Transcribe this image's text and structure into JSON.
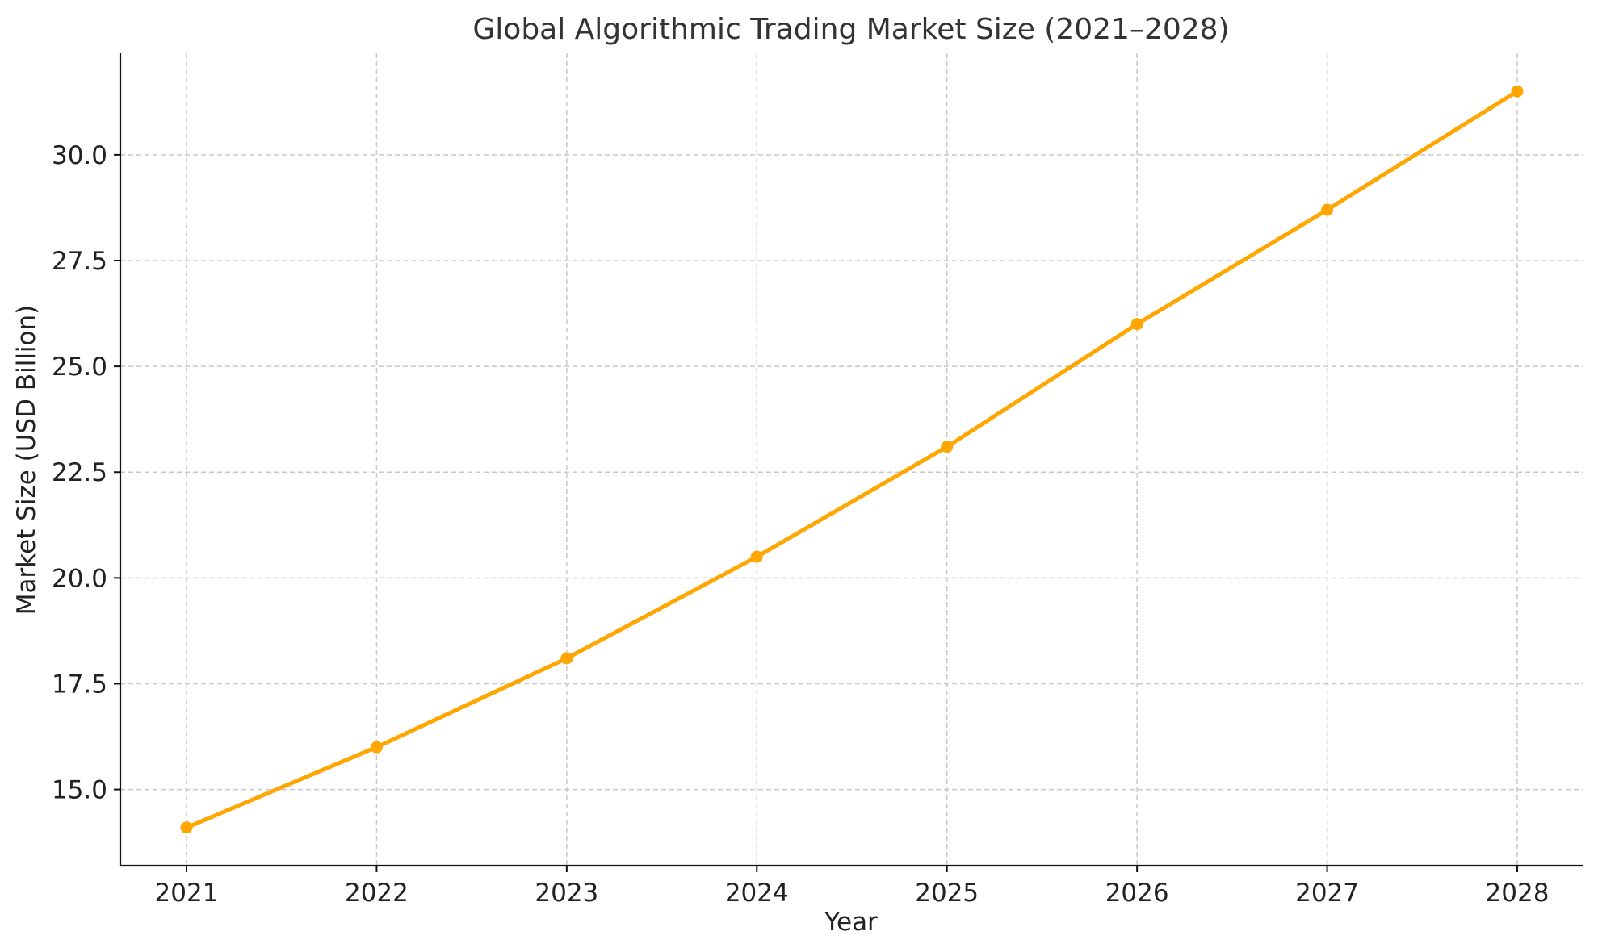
{
  "chart_data": {
    "type": "line",
    "title": "Global Algorithmic Trading Market Size (2021–2028)",
    "xlabel": "Year",
    "ylabel": "Market Size (USD Billion)",
    "x": [
      "2021",
      "2022",
      "2023",
      "2024",
      "2025",
      "2026",
      "2027",
      "2028"
    ],
    "series": [
      {
        "values": [
          14.1,
          16.0,
          18.1,
          20.5,
          23.1,
          26.0,
          28.7,
          31.5
        ],
        "color": "#FFA600",
        "marker": "circle"
      }
    ],
    "y_ticks": [
      15.0,
      17.5,
      20.0,
      22.5,
      25.0,
      27.5,
      30.0
    ],
    "y_tick_labels": [
      "15.0",
      "17.5",
      "20.0",
      "22.5",
      "25.0",
      "27.5",
      "30.0"
    ],
    "ylim": [
      13.2,
      32.4
    ],
    "grid": true,
    "legend": "none"
  }
}
